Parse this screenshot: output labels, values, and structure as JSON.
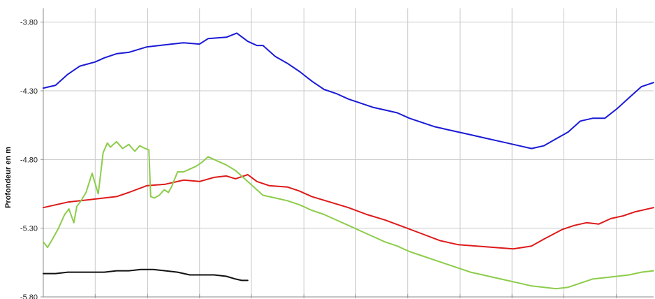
{
  "chart_data": {
    "type": "line",
    "title": "",
    "xlabel": "",
    "ylabel": "Profondeur en m",
    "ylim": [
      -5.8,
      -3.7
    ],
    "xlim": [
      0,
      100
    ],
    "y_ticks": [
      -3.8,
      -4.3,
      -4.8,
      -5.3,
      -5.8
    ],
    "y_tick_labels": [
      "-3.80",
      "-4.30",
      "-4.80",
      "-5.30",
      "-5.80"
    ],
    "x_grid_positions": [
      8.5,
      17.1,
      25.6,
      34.1,
      42.7,
      51.2,
      59.7,
      68.3,
      76.8,
      85.3,
      93.9
    ],
    "grid": true,
    "legend": "none",
    "series": [
      {
        "color": "#1a1ad6",
        "x": [
          0,
          2,
          4,
          6,
          8.5,
          10,
          12,
          14,
          17,
          19,
          21,
          23,
          25.6,
          27,
          30,
          31.7,
          33.5,
          35,
          36,
          38,
          40,
          42,
          44,
          46,
          48,
          50,
          52,
          54,
          56,
          58,
          60,
          62,
          64,
          66,
          68,
          70,
          72,
          74,
          76,
          78,
          80,
          82,
          84,
          86,
          88,
          90,
          92,
          94,
          96,
          98,
          100
        ],
        "y": [
          -4.28,
          -4.26,
          -4.18,
          -4.12,
          -4.09,
          -4.06,
          -4.03,
          -4.02,
          -3.98,
          -3.97,
          -3.96,
          -3.95,
          -3.96,
          -3.92,
          -3.91,
          -3.88,
          -3.94,
          -3.97,
          -3.97,
          -4.05,
          -4.1,
          -4.16,
          -4.23,
          -4.29,
          -4.32,
          -4.36,
          -4.39,
          -4.42,
          -4.44,
          -4.46,
          -4.5,
          -4.53,
          -4.56,
          -4.58,
          -4.6,
          -4.62,
          -4.64,
          -4.66,
          -4.68,
          -4.7,
          -4.72,
          -4.7,
          -4.65,
          -4.6,
          -4.52,
          -4.5,
          -4.5,
          -4.43,
          -4.35,
          -4.27,
          -4.24
        ]
      },
      {
        "color": "#dd1a1a",
        "x": [
          0,
          4,
          8,
          12,
          14,
          17,
          20,
          23,
          25.6,
          28,
          30,
          31.5,
          33.5,
          35,
          37,
          40,
          42,
          44,
          47,
          50,
          53,
          56,
          59,
          62,
          65,
          68,
          71,
          74,
          77,
          80,
          82,
          85,
          87,
          89,
          91,
          93,
          95,
          97,
          100
        ],
        "y": [
          -5.15,
          -5.11,
          -5.09,
          -5.07,
          -5.04,
          -4.99,
          -4.98,
          -4.95,
          -4.96,
          -4.93,
          -4.92,
          -4.94,
          -4.91,
          -4.96,
          -4.99,
          -5.0,
          -5.03,
          -5.07,
          -5.11,
          -5.15,
          -5.2,
          -5.24,
          -5.29,
          -5.34,
          -5.39,
          -5.42,
          -5.43,
          -5.44,
          -5.45,
          -5.43,
          -5.38,
          -5.31,
          -5.28,
          -5.26,
          -5.27,
          -5.23,
          -5.21,
          -5.18,
          -5.15
        ]
      },
      {
        "color": "#8ccc4a",
        "x": [
          0,
          0.7,
          1.5,
          2.5,
          3.5,
          4.2,
          5,
          5.5,
          6.2,
          7,
          8,
          9,
          9.8,
          10.5,
          11,
          12,
          13,
          14,
          15,
          15.8,
          16.7,
          17.3,
          17.6,
          18.2,
          19,
          19.8,
          20.5,
          21,
          22,
          23,
          24,
          25,
          26,
          27,
          28,
          29,
          30,
          31.5,
          33,
          34.5,
          36,
          38,
          40,
          42,
          44,
          46,
          48,
          50,
          52,
          54,
          56,
          58,
          60,
          62,
          64,
          66,
          68,
          70,
          72,
          74,
          76,
          78,
          80,
          82,
          84,
          86,
          88,
          90,
          92,
          94,
          96,
          98,
          100
        ],
        "y": [
          -5.4,
          -5.44,
          -5.38,
          -5.3,
          -5.2,
          -5.16,
          -5.26,
          -5.14,
          -5.1,
          -5.04,
          -4.9,
          -5.05,
          -4.75,
          -4.68,
          -4.71,
          -4.67,
          -4.72,
          -4.69,
          -4.74,
          -4.7,
          -4.72,
          -4.73,
          -5.07,
          -5.08,
          -5.06,
          -5.02,
          -5.04,
          -5.0,
          -4.89,
          -4.89,
          -4.87,
          -4.85,
          -4.82,
          -4.78,
          -4.8,
          -4.82,
          -4.84,
          -4.88,
          -4.94,
          -5.0,
          -5.06,
          -5.08,
          -5.1,
          -5.13,
          -5.17,
          -5.2,
          -5.24,
          -5.28,
          -5.32,
          -5.36,
          -5.4,
          -5.43,
          -5.47,
          -5.5,
          -5.53,
          -5.56,
          -5.59,
          -5.62,
          -5.64,
          -5.66,
          -5.68,
          -5.7,
          -5.72,
          -5.73,
          -5.74,
          -5.73,
          -5.7,
          -5.67,
          -5.66,
          -5.65,
          -5.64,
          -5.62,
          -5.61
        ]
      },
      {
        "color": "#111111",
        "x": [
          0,
          2,
          4,
          6,
          8,
          10,
          12,
          14,
          16,
          18,
          20,
          22,
          24,
          26,
          28,
          30,
          31.5,
          32.5,
          33.5
        ],
        "y": [
          -5.63,
          -5.63,
          -5.62,
          -5.62,
          -5.62,
          -5.62,
          -5.61,
          -5.61,
          -5.6,
          -5.6,
          -5.61,
          -5.62,
          -5.64,
          -5.64,
          -5.64,
          -5.65,
          -5.67,
          -5.68,
          -5.68
        ]
      }
    ]
  }
}
